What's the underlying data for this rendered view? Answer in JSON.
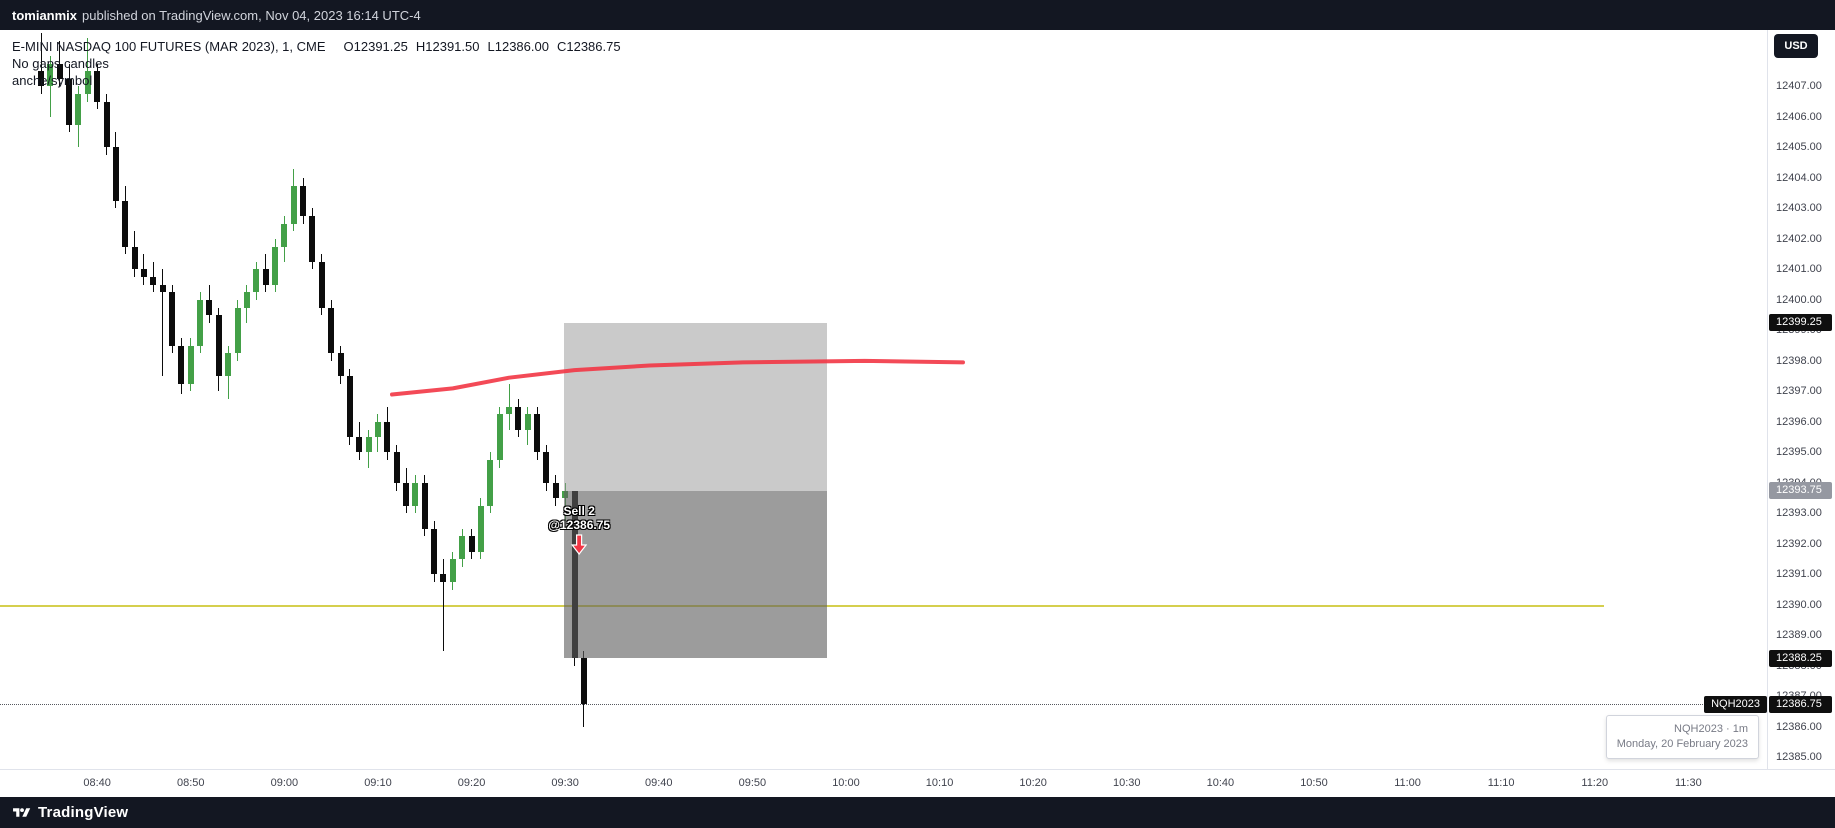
{
  "top_bar": {
    "publisher": "tomianmix",
    "published_text": "published on TradingView.com, Nov 04, 2023 16:14 UTC-4"
  },
  "legend": {
    "symbol_title": "E-MINI NASDAQ 100 FUTURES (MAR 2023), 1, CME",
    "ohlc": {
      "o_label": "O",
      "o": "12391.25",
      "h_label": "H",
      "h": "12391.50",
      "l_label": "L",
      "l": "12386.00",
      "c_label": "C",
      "c": "12386.75"
    },
    "study_line1": "No gaps candles",
    "study_line2": "anche/symbol"
  },
  "currency_button": "USD",
  "sell_marker": {
    "line1": "Sell 2",
    "line2": "@12386.75"
  },
  "tooltip": {
    "line1": "NQH2023 · 1m",
    "line2": "Monday, 20 February 2023"
  },
  "footer": {
    "brand": "TradingView"
  },
  "price_axis": {
    "symbol_tag": "NQH2023",
    "labels": [
      "12407.00",
      "12406.00",
      "12405.00",
      "12404.00",
      "12403.00",
      "12402.00",
      "12401.00",
      "12400.00",
      "12399.00",
      "12398.00",
      "12397.00",
      "12396.00",
      "12395.00",
      "12394.00",
      "12393.00",
      "12392.00",
      "12391.00",
      "12390.00",
      "12389.00",
      "12388.00",
      "12387.00",
      "12386.00",
      "12385.00"
    ],
    "badges": [
      {
        "text": "12399.25",
        "bg": "#0f0f0f"
      },
      {
        "text": "12393.75",
        "bg": "#9598a1"
      },
      {
        "text": "12388.25",
        "bg": "#0f0f0f"
      },
      {
        "text": "12386.75",
        "bg": "#0f0f0f"
      }
    ]
  },
  "time_axis": {
    "labels": [
      "08:40",
      "08:50",
      "09:00",
      "09:10",
      "09:20",
      "09:30",
      "09:40",
      "09:50",
      "10:00",
      "10:10",
      "10:20",
      "10:30",
      "10:40",
      "10:50",
      "11:00",
      "11:10",
      "11:20",
      "11:30"
    ]
  },
  "chart_data": {
    "type": "candlestick",
    "symbol": "NQH2023",
    "interval": "1m",
    "title": "E-MINI NASDAQ 100 FUTURES (MAR 2023), 1, CME",
    "ohlc_readout": {
      "open": 12391.25,
      "high": 12391.5,
      "low": 12386.0,
      "close": 12386.75
    },
    "ylim": [
      12384.6,
      12408.9
    ],
    "x_start_time": "08:34",
    "x_interval_minutes": 1,
    "up_color": "#43a047",
    "down_color": "#0c0c0c",
    "candles": [
      [
        12407.5,
        12408.75,
        12406.75,
        12407.0
      ],
      [
        12407.0,
        12408.0,
        12406.0,
        12407.75
      ],
      [
        12407.75,
        12408.5,
        12407.0,
        12407.25
      ],
      [
        12407.25,
        12407.75,
        12405.5,
        12405.75
      ],
      [
        12405.75,
        12407.0,
        12405.0,
        12406.75
      ],
      [
        12406.75,
        12408.6,
        12406.5,
        12407.5
      ],
      [
        12407.5,
        12407.75,
        12406.25,
        12406.5
      ],
      [
        12406.5,
        12406.75,
        12404.75,
        12405.0
      ],
      [
        12405.0,
        12405.5,
        12403.0,
        12403.25
      ],
      [
        12403.25,
        12403.75,
        12401.5,
        12401.75
      ],
      [
        12401.75,
        12402.25,
        12400.75,
        12401.0
      ],
      [
        12401.0,
        12401.5,
        12400.5,
        12400.75
      ],
      [
        12400.75,
        12401.25,
        12400.25,
        12400.5
      ],
      [
        12400.5,
        12401.0,
        12397.5,
        12400.25
      ],
      [
        12400.25,
        12400.5,
        12398.25,
        12398.5
      ],
      [
        12398.5,
        12398.75,
        12396.9,
        12397.25
      ],
      [
        12397.25,
        12398.75,
        12397.0,
        12398.5
      ],
      [
        12398.5,
        12400.25,
        12398.25,
        12400.0
      ],
      [
        12400.0,
        12400.5,
        12399.25,
        12399.5
      ],
      [
        12399.5,
        12399.75,
        12397.0,
        12397.5
      ],
      [
        12397.5,
        12398.5,
        12396.75,
        12398.25
      ],
      [
        12398.25,
        12400.0,
        12398.0,
        12399.75
      ],
      [
        12399.75,
        12400.5,
        12399.25,
        12400.25
      ],
      [
        12400.25,
        12401.25,
        12400.0,
        12401.0
      ],
      [
        12401.0,
        12401.5,
        12400.25,
        12400.5
      ],
      [
        12400.5,
        12402.0,
        12400.25,
        12401.75
      ],
      [
        12401.75,
        12402.75,
        12401.25,
        12402.5
      ],
      [
        12402.5,
        12404.3,
        12402.25,
        12403.75
      ],
      [
        12403.75,
        12404.0,
        12402.5,
        12402.75
      ],
      [
        12402.75,
        12403.0,
        12401.0,
        12401.25
      ],
      [
        12401.25,
        12401.5,
        12399.5,
        12399.75
      ],
      [
        12399.75,
        12400.0,
        12398.0,
        12398.25
      ],
      [
        12398.25,
        12398.5,
        12397.25,
        12397.5
      ],
      [
        12397.5,
        12397.75,
        12395.25,
        12395.5
      ],
      [
        12395.5,
        12396.0,
        12394.75,
        12395.0
      ],
      [
        12395.0,
        12395.75,
        12394.5,
        12395.5
      ],
      [
        12395.5,
        12396.25,
        12395.0,
        12396.0
      ],
      [
        12396.0,
        12396.5,
        12394.75,
        12395.0
      ],
      [
        12395.0,
        12395.25,
        12393.75,
        12394.0
      ],
      [
        12394.0,
        12394.5,
        12393.0,
        12393.25
      ],
      [
        12393.25,
        12394.25,
        12393.0,
        12394.0
      ],
      [
        12394.0,
        12394.25,
        12392.25,
        12392.5
      ],
      [
        12392.5,
        12392.75,
        12390.75,
        12391.0
      ],
      [
        12391.0,
        12391.5,
        12388.5,
        12390.75
      ],
      [
        12390.75,
        12391.75,
        12390.5,
        12391.5
      ],
      [
        12391.5,
        12392.5,
        12391.25,
        12392.25
      ],
      [
        12392.25,
        12392.5,
        12391.5,
        12391.75
      ],
      [
        12391.75,
        12393.5,
        12391.5,
        12393.25
      ],
      [
        12393.25,
        12395.0,
        12393.0,
        12394.75
      ],
      [
        12394.75,
        12396.5,
        12394.5,
        12396.25
      ],
      [
        12396.25,
        12397.25,
        12395.75,
        12396.5
      ],
      [
        12396.5,
        12396.75,
        12395.5,
        12395.75
      ],
      [
        12395.75,
        12396.5,
        12395.25,
        12396.25
      ],
      [
        12396.25,
        12396.5,
        12394.75,
        12395.0
      ],
      [
        12395.0,
        12395.25,
        12393.75,
        12394.0
      ],
      [
        12394.0,
        12394.25,
        12393.25,
        12393.5
      ],
      [
        12393.5,
        12394.0,
        12392.75,
        12393.75
      ],
      [
        12393.75,
        12393.75,
        12388.0,
        12388.25
      ],
      [
        12388.25,
        12388.5,
        12386.0,
        12386.75
      ]
    ],
    "red_curve": {
      "color": "#f23645",
      "points": [
        [
          37.5,
          12396.9
        ],
        [
          44,
          12397.1
        ],
        [
          50,
          12397.45
        ],
        [
          57,
          12397.7
        ],
        [
          65,
          12397.85
        ],
        [
          75,
          12397.95
        ],
        [
          88,
          12398.0
        ],
        [
          98.5,
          12397.95
        ]
      ]
    },
    "short_position_box": {
      "start_index": 55.9,
      "end_index": 84,
      "stop_price": 12399.25,
      "entry_price": 12393.75,
      "target_price": 12388.25,
      "upper_color": "rgba(150,150,150,0.50)",
      "lower_color": "rgba(95,95,95,0.62)"
    },
    "yellow_line": {
      "price": 12390.0,
      "start_index": -5,
      "end_index": 167,
      "color": "#d5cf4e"
    },
    "last_price": 12386.75,
    "sell_execution": {
      "index": 57.5,
      "label_anchor_price": 12393.3,
      "qty_label": "Sell 2",
      "price_label": "@12386.75"
    }
  }
}
